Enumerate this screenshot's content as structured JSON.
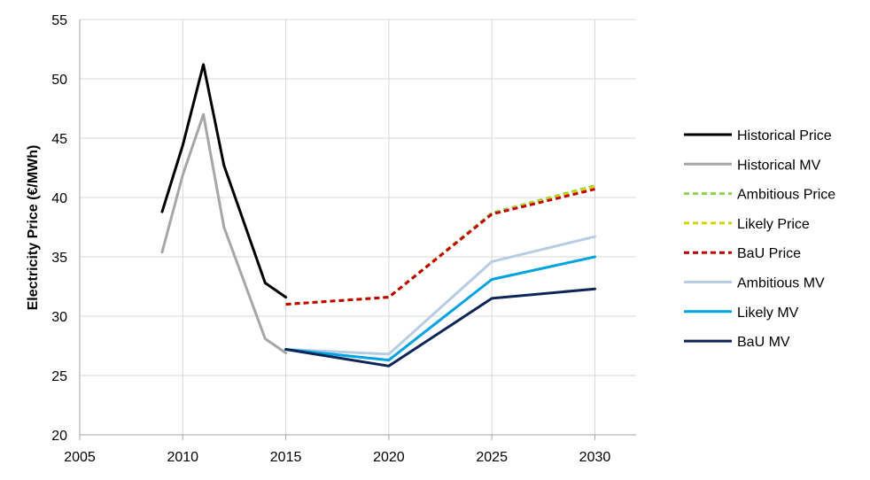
{
  "chart_data": {
    "type": "line",
    "title": "",
    "xlabel": "",
    "ylabel": "Electricity Price (€/MWh)",
    "xlim": [
      2005,
      2032
    ],
    "ylim": [
      20,
      55
    ],
    "x_ticks": [
      2005,
      2010,
      2015,
      2020,
      2025,
      2030
    ],
    "y_ticks": [
      20,
      25,
      30,
      35,
      40,
      45,
      50,
      55
    ],
    "grid": true,
    "legend_position": "right",
    "series": [
      {
        "name": "Historical Price",
        "color": "#000000",
        "dash": false,
        "x": [
          2009,
          2010,
          2011,
          2012,
          2014,
          2015
        ],
        "y": [
          38.8,
          44.4,
          51.2,
          42.7,
          32.8,
          31.6
        ]
      },
      {
        "name": "Historical MV",
        "color": "#a6a6a6",
        "dash": false,
        "x": [
          2009,
          2010,
          2011,
          2012,
          2014,
          2015
        ],
        "y": [
          35.4,
          41.9,
          47.0,
          37.5,
          28.1,
          26.9
        ]
      },
      {
        "name": "Ambitious Price",
        "color": "#92d050",
        "dash": true,
        "x": [
          2015,
          2020,
          2025,
          2030
        ],
        "y": [
          31.0,
          31.6,
          38.7,
          41.0
        ]
      },
      {
        "name": "Likely Price",
        "color": "#d4d400",
        "dash": true,
        "x": [
          2015,
          2020,
          2025,
          2030
        ],
        "y": [
          31.0,
          31.6,
          38.6,
          40.9
        ]
      },
      {
        "name": "BaU Price",
        "color": "#c00000",
        "dash": true,
        "x": [
          2015,
          2020,
          2025,
          2030
        ],
        "y": [
          31.0,
          31.6,
          38.6,
          40.7
        ]
      },
      {
        "name": "Ambitious MV",
        "color": "#b8cce4",
        "dash": false,
        "x": [
          2015,
          2020,
          2025,
          2030
        ],
        "y": [
          27.2,
          26.8,
          34.6,
          36.7
        ]
      },
      {
        "name": "Likely MV",
        "color": "#00a3e0",
        "dash": false,
        "x": [
          2015,
          2020,
          2025,
          2030
        ],
        "y": [
          27.2,
          26.3,
          33.1,
          35.0
        ]
      },
      {
        "name": "BaU MV",
        "color": "#0d2557",
        "dash": false,
        "x": [
          2015,
          2020,
          2025,
          2030
        ],
        "y": [
          27.2,
          25.8,
          31.5,
          32.3
        ]
      }
    ]
  }
}
